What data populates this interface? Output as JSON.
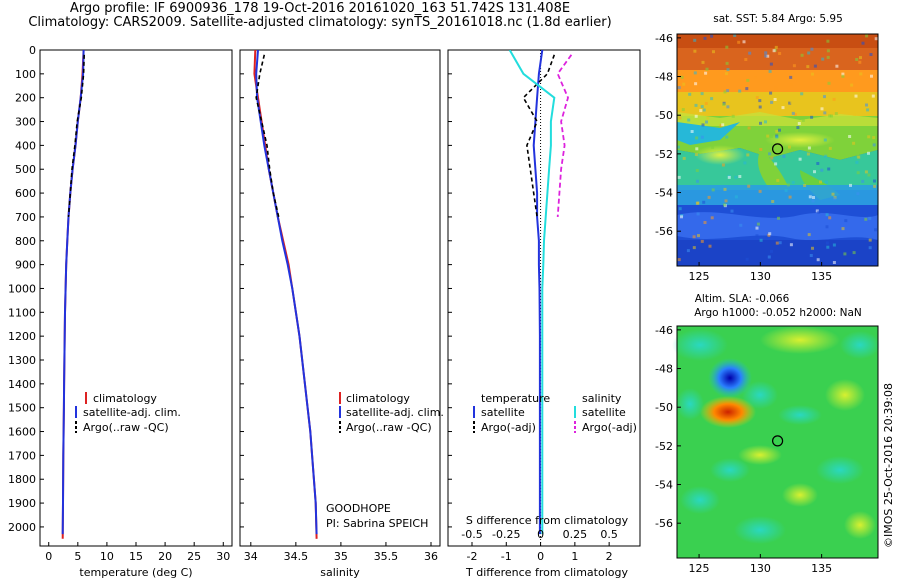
{
  "header": {
    "line1": "Argo profile: IF 6900936_178 19-Oct-2016 20161020_163 51.742S 131.408E",
    "line2": "Climatology: CARS2009. Satellite-adjusted climatology: synTS_20161018.nc (1.8d earlier)"
  },
  "footer_stamp": "©IMOS 25-Oct-2016 20:39:08",
  "colors": {
    "climatology": "#dd2222",
    "satellite": "#2233dd",
    "argo": "#000000",
    "sal_satellite": "#22dddd",
    "sal_argo": "#dd22dd"
  },
  "panel_temp": {
    "xlabel": "temperature (deg C)",
    "xticks": [
      0,
      5,
      10,
      15,
      20,
      25,
      30
    ],
    "xlim": [
      -1.5,
      31.5
    ],
    "legend": [
      "climatology",
      "satellite-adj. clim.",
      "Argo(..raw -QC)"
    ]
  },
  "panel_sal": {
    "xlabel": "salinity",
    "xticks": [
      34,
      34.5,
      35,
      35.5,
      36
    ],
    "xlim": [
      33.88,
      36.1
    ],
    "legend": [
      "climatology",
      "satellite-adj. clim.",
      "Argo(..raw -QC)"
    ],
    "project": "GOODHOPE",
    "pi": "PI: Sabrina SPEICH"
  },
  "panel_diff": {
    "xlabel": "T difference from climatology",
    "xticks": [
      -2,
      -1,
      0,
      1,
      2
    ],
    "xlim": [
      -2.7,
      2.9
    ],
    "s_title": "S difference from climatology",
    "s_ticks": [
      "-0.5",
      "-0.25",
      "0",
      "0.25",
      "0.5"
    ],
    "legend_temp_title": "temperature",
    "legend_sal_title": "salinity",
    "legend_temp": [
      "satellite",
      "Argo(-adj)"
    ],
    "legend_sal": [
      "satellite",
      "Argo(-adj)"
    ]
  },
  "depth_axis": {
    "ticks": [
      0,
      100,
      200,
      300,
      400,
      500,
      600,
      700,
      800,
      900,
      1000,
      1100,
      1200,
      1300,
      1400,
      1500,
      1600,
      1700,
      1800,
      1900,
      2000
    ],
    "ylim": [
      0,
      2080
    ]
  },
  "map_sst": {
    "title": "sat. SST: 5.84 Argo: 5.95",
    "lat_ticks": [
      -46,
      -48,
      -50,
      -52,
      -54,
      -56
    ],
    "lon_ticks": [
      125,
      130,
      135
    ],
    "lat_range": [
      -45.8,
      -57.8
    ],
    "lon_range": [
      123.2,
      139.6
    ],
    "argo_pos": {
      "lon": 131.408,
      "lat": -51.742
    }
  },
  "map_sla": {
    "title1": "Altim. SLA: -0.066",
    "title2": "Argo h1000: -0.052 h2000: NaN",
    "lat_ticks": [
      -46,
      -48,
      -50,
      -52,
      -54,
      -56
    ],
    "lon_ticks": [
      125,
      130,
      135
    ],
    "lat_range": [
      -45.8,
      -57.8
    ],
    "lon_range": [
      123.2,
      139.6
    ],
    "argo_pos": {
      "lon": 131.408,
      "lat": -51.742
    }
  },
  "chart_data": [
    {
      "type": "line",
      "panel": "temperature",
      "xlabel": "temperature (deg C)",
      "ylabel": "",
      "series": [
        {
          "name": "climatology",
          "x": [
            6.0,
            5.8,
            5.5,
            5.0,
            4.6,
            4.1,
            3.7,
            3.4,
            3.2,
            3.0,
            2.9,
            2.8,
            2.75,
            2.7,
            2.65,
            2.6,
            2.55,
            2.5,
            2.45,
            2.4
          ],
          "y": [
            0,
            100,
            200,
            300,
            400,
            500,
            600,
            700,
            800,
            900,
            1000,
            1100,
            1200,
            1300,
            1400,
            1500,
            1600,
            1700,
            1900,
            2050
          ]
        },
        {
          "name": "satellite-adj. clim.",
          "x": [
            6.0,
            5.9,
            5.5,
            5.0,
            4.6,
            4.1,
            3.7,
            3.4,
            3.2,
            3.0,
            2.9,
            2.8,
            2.75,
            2.7,
            2.65,
            2.6,
            2.55,
            2.5,
            2.45,
            2.4
          ],
          "y": [
            0,
            100,
            200,
            300,
            400,
            500,
            600,
            700,
            800,
            900,
            1000,
            1100,
            1200,
            1300,
            1400,
            1500,
            1600,
            1700,
            1900,
            2030
          ]
        },
        {
          "name": "Argo(..raw -QC)",
          "x": [
            6.1,
            6.0,
            5.6,
            4.9,
            4.5,
            4.0,
            3.7,
            3.4
          ],
          "y": [
            20,
            100,
            200,
            300,
            400,
            500,
            600,
            700
          ]
        }
      ]
    },
    {
      "type": "line",
      "panel": "salinity",
      "xlabel": "salinity",
      "ylabel": "",
      "series": [
        {
          "name": "climatology",
          "x": [
            34.05,
            34.04,
            34.08,
            34.12,
            34.16,
            34.2,
            34.25,
            34.3,
            34.36,
            34.42,
            34.46,
            34.5,
            34.54,
            34.57,
            34.6,
            34.63,
            34.66,
            34.68,
            34.7,
            34.72,
            34.73
          ],
          "y": [
            0,
            100,
            200,
            300,
            400,
            500,
            600,
            700,
            800,
            900,
            1000,
            1100,
            1200,
            1300,
            1400,
            1500,
            1600,
            1700,
            1800,
            1900,
            2050
          ]
        },
        {
          "name": "satellite-adj. clim.",
          "x": [
            34.08,
            34.06,
            34.07,
            34.11,
            34.15,
            34.2,
            34.25,
            34.3,
            34.35,
            34.41,
            34.46,
            34.5,
            34.54,
            34.57,
            34.6,
            34.63,
            34.66,
            34.68,
            34.7,
            34.72,
            34.73
          ],
          "y": [
            0,
            100,
            200,
            300,
            400,
            500,
            600,
            700,
            800,
            900,
            1000,
            1100,
            1200,
            1300,
            1400,
            1500,
            1600,
            1700,
            1800,
            1900,
            2030
          ]
        },
        {
          "name": "Argo(..raw -QC)",
          "x": [
            34.15,
            34.1,
            34.06,
            34.12,
            34.18,
            34.21,
            34.25,
            34.31
          ],
          "y": [
            20,
            100,
            200,
            300,
            400,
            500,
            600,
            700
          ]
        }
      ]
    },
    {
      "type": "line",
      "panel": "difference",
      "xlabel": "T difference from climatology",
      "ylabel": "",
      "series": [
        {
          "name": "temperature satellite",
          "x": [
            0.05,
            -0.05,
            -0.1,
            -0.15,
            -0.2,
            -0.15,
            -0.1,
            -0.1,
            -0.05,
            -0.05,
            -0.03,
            -0.02,
            -0.02,
            -0.02,
            -0.02,
            -0.02,
            -0.02,
            -0.02,
            -0.02
          ],
          "y": [
            0,
            100,
            200,
            300,
            400,
            500,
            600,
            700,
            800,
            900,
            1000,
            1200,
            1300,
            1400,
            1500,
            1600,
            1700,
            1900,
            2030
          ]
        },
        {
          "name": "temperature Argo(-adj)",
          "x": [
            0.4,
            0.2,
            -0.5,
            -0.1,
            -0.4,
            -0.3,
            -0.2,
            -0.1
          ],
          "y": [
            20,
            100,
            200,
            300,
            400,
            500,
            600,
            700
          ]
        },
        {
          "name": "salinity satellite",
          "x": [
            -0.9,
            -0.5,
            0.4,
            0.3,
            0.3,
            0.25,
            0.2,
            0.15,
            0.1,
            0.08,
            0.05,
            0.05,
            0.05,
            0.05,
            0.05,
            0.05,
            0.05,
            0.05,
            0.05
          ],
          "y": [
            0,
            100,
            200,
            300,
            400,
            500,
            600,
            700,
            800,
            900,
            1000,
            1200,
            1300,
            1400,
            1500,
            1600,
            1700,
            1900,
            2030
          ]
        },
        {
          "name": "salinity Argo(-adj)",
          "x": [
            0.9,
            0.5,
            0.8,
            0.6,
            0.7,
            0.6,
            0.55,
            0.5
          ],
          "y": [
            20,
            100,
            200,
            300,
            400,
            500,
            600,
            700
          ]
        }
      ]
    }
  ]
}
